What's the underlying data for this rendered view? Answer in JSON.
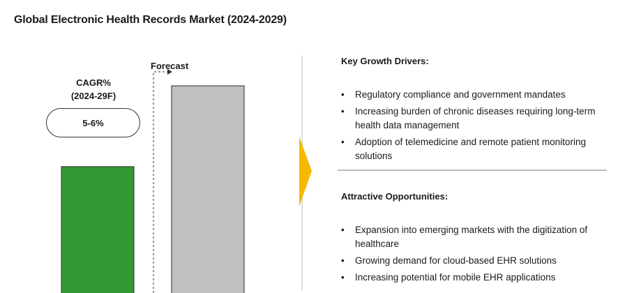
{
  "title": "Global Electronic Health Records Market (2024-2029)",
  "cagr": {
    "label_line1": "CAGR%",
    "label_line2": "(2024-29F)",
    "value": "5-6%"
  },
  "forecast_label": "Forecast",
  "chart_data": {
    "type": "bar",
    "title": "Global Electronic Health Records Market (2024-2029)",
    "categories": [
      "",
      ""
    ],
    "bars": [
      {
        "relative_value": 0.61,
        "color": "#339933"
      },
      {
        "relative_value": 1.0,
        "color": "#c0c0c0"
      }
    ],
    "xlabel": "",
    "ylabel": "",
    "grid": false
  },
  "colors": {
    "historical_bar": "#339933",
    "forecast_bar": "#c0c0c0",
    "arrow": "#f7b800",
    "divider": "#bdbdbd"
  },
  "drivers": {
    "heading": "Key Growth Drivers:",
    "items": [
      "Regulatory compliance and government mandates",
      "Increasing burden of chronic diseases requiring long-term health data management",
      "Adoption of telemedicine and remote patient monitoring solutions"
    ]
  },
  "opportunities": {
    "heading": "Attractive Opportunities:",
    "items": [
      "Expansion into emerging markets with the digitization of healthcare",
      "Growing demand for cloud-based EHR solutions",
      "Increasing potential for mobile EHR applications"
    ]
  },
  "bullet_char": "•"
}
